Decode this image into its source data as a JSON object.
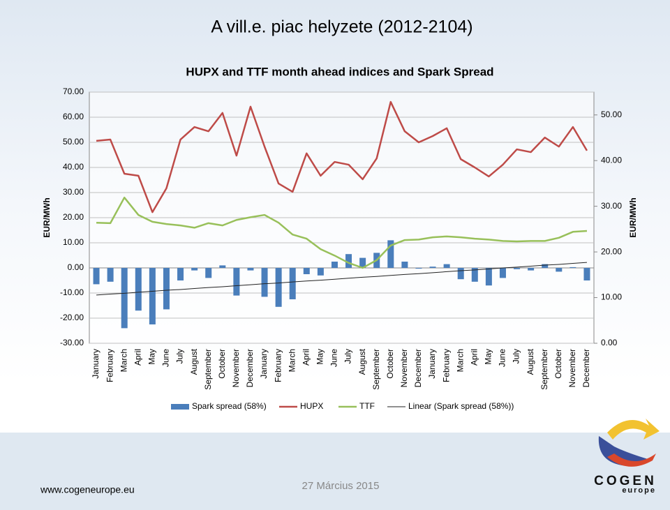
{
  "header": {
    "title": "A vill.e. piac helyzete (2012-2104)"
  },
  "chart_data": {
    "type": "bar",
    "title": "HUPX and TTF month ahead indices and Spark Spread",
    "ylabel": "EUR/MWh",
    "y2label": "EUR/MWh",
    "categories": [
      "January",
      "February",
      "March",
      "April",
      "May",
      "June",
      "July",
      "August",
      "September",
      "October",
      "November",
      "December",
      "January",
      "February",
      "March",
      "April",
      "May",
      "June",
      "July",
      "August",
      "September",
      "October",
      "November",
      "December",
      "January",
      "February",
      "March",
      "April",
      "May",
      "June",
      "July",
      "August",
      "September",
      "October",
      "November",
      "December"
    ],
    "series": [
      {
        "name": "Spark spread (58%)",
        "type": "bar",
        "color": "#4a7ebb",
        "values": [
          -6.5,
          -5.5,
          -24,
          -17,
          -22.5,
          -16.5,
          -5,
          -1,
          -4,
          1,
          -11,
          -1,
          -11.5,
          -15.5,
          -12.5,
          -2.5,
          -3,
          2.5,
          5.5,
          4,
          6,
          11,
          2.5,
          -0.3,
          0.5,
          1.5,
          -4.5,
          -5.5,
          -7,
          -4,
          -0.5,
          -1,
          1.5,
          -1.5,
          0.3,
          -5
        ]
      },
      {
        "name": "HUPX",
        "type": "line",
        "color": "#be4b48",
        "values": [
          50.6,
          51.1,
          37.5,
          36.7,
          22.2,
          31.7,
          51.1,
          56.1,
          54.4,
          61.7,
          44.7,
          64.2,
          48.3,
          33.6,
          30.3,
          45.6,
          36.7,
          42.2,
          41.1,
          35.3,
          43.6,
          66.1,
          54.4,
          50.0,
          52.5,
          55.6,
          43.3,
          40.0,
          36.4,
          41.1,
          47.2,
          46.1,
          51.9,
          48.3,
          56.1,
          46.7
        ]
      },
      {
        "name": "TTF",
        "type": "line",
        "color": "#98c05a",
        "axis": "y2",
        "values": [
          26.4,
          26.3,
          31.9,
          28.1,
          26.6,
          26.1,
          25.8,
          25.3,
          26.3,
          25.8,
          27.0,
          27.6,
          28.1,
          26.4,
          23.8,
          22.9,
          20.6,
          19.2,
          17.6,
          16.5,
          18.2,
          21.4,
          22.6,
          22.7,
          23.2,
          23.4,
          23.2,
          22.9,
          22.7,
          22.4,
          22.3,
          22.4,
          22.4,
          23.1,
          24.4,
          24.6
        ]
      },
      {
        "name": "Linear (Spark spread (58%))",
        "type": "line",
        "color": "#222222",
        "values": [
          -10.8,
          -10.4,
          -10.1,
          -9.7,
          -9.3,
          -8.9,
          -8.6,
          -8.2,
          -7.8,
          -7.5,
          -7.1,
          -6.7,
          -6.3,
          -6.0,
          -5.6,
          -5.2,
          -4.9,
          -4.5,
          -4.1,
          -3.7,
          -3.4,
          -3.0,
          -2.6,
          -2.3,
          -1.9,
          -1.5,
          -1.1,
          -0.8,
          -0.4,
          0.0,
          0.3,
          0.7,
          1.1,
          1.4,
          1.8,
          2.2
        ]
      }
    ],
    "ylim": [
      -30,
      70
    ],
    "yticks": [
      {
        "value": -30,
        "label": "-30.00"
      },
      {
        "value": -20,
        "label": "-20.00"
      },
      {
        "value": -10,
        "label": "-10.00"
      },
      {
        "value": 0,
        "label": "0.00"
      },
      {
        "value": 10,
        "label": "10.00"
      },
      {
        "value": 20,
        "label": "20.00"
      },
      {
        "value": 30,
        "label": "30.00"
      },
      {
        "value": 40,
        "label": "40.00"
      },
      {
        "value": 50,
        "label": "50.00"
      },
      {
        "value": 60,
        "label": "60.00"
      },
      {
        "value": 70,
        "label": "70.00"
      }
    ],
    "y2lim": [
      0,
      55
    ],
    "y2ticks": [
      {
        "value": 0,
        "label": "0.00"
      },
      {
        "value": 10,
        "label": "10.00"
      },
      {
        "value": 20,
        "label": "20.00"
      },
      {
        "value": 30,
        "label": "30.00"
      },
      {
        "value": 40,
        "label": "40.00"
      },
      {
        "value": 50,
        "label": "50.00"
      }
    ],
    "grid": true,
    "legend": "bottom"
  },
  "footer": {
    "url": "www.cogeneurope.eu",
    "date": "27 Március 2015"
  },
  "logo": {
    "name": "COGEN",
    "sub": "europe"
  }
}
